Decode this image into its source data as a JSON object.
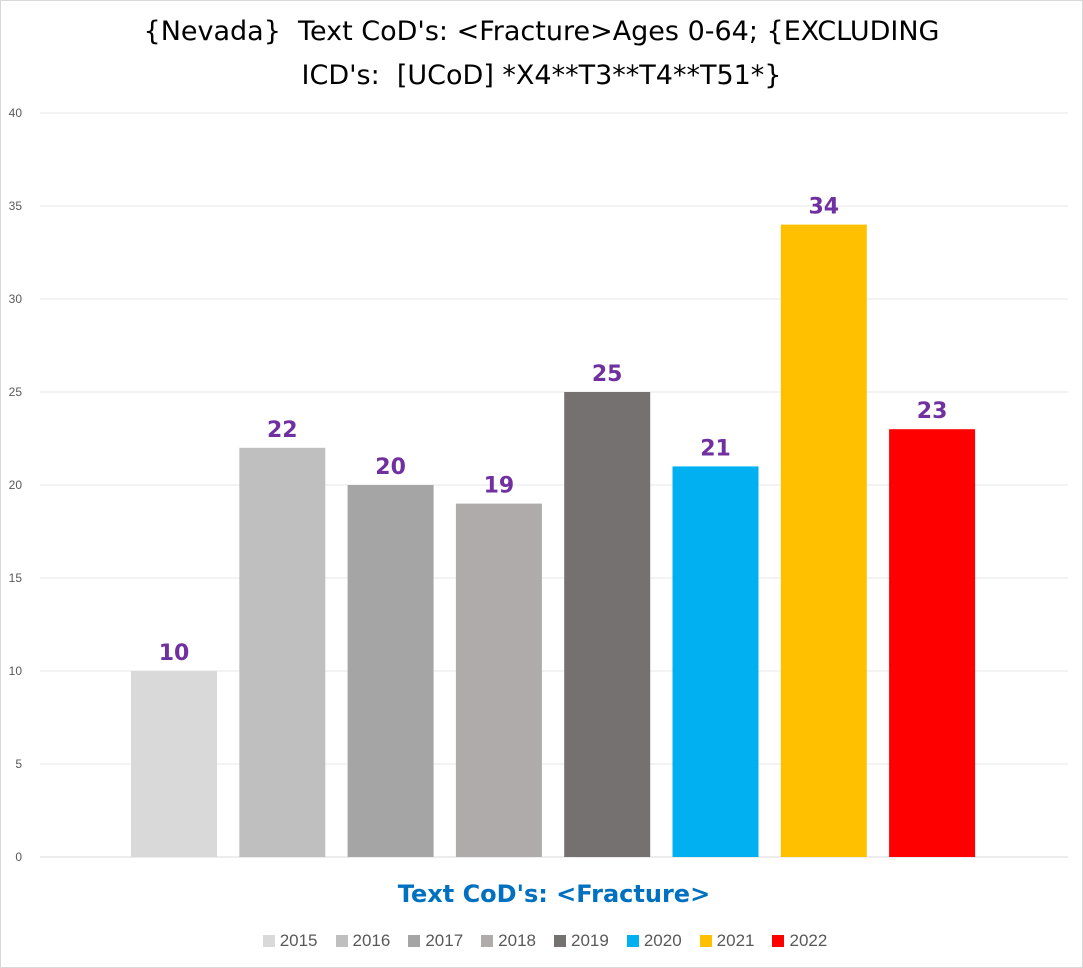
{
  "chart_data": {
    "type": "bar",
    "title_lines": [
      "{Nevada}  Text CoD's: <Fracture>Ages 0-64; {EXCLUDING",
      "ICD's:  [UCoD] *X4**T3**T4**T51*}"
    ],
    "xlabel": "Text CoD's: <Fracture>",
    "ylabel": "",
    "ylim": [
      0,
      40
    ],
    "yticks": [
      0,
      5,
      10,
      15,
      20,
      25,
      30,
      35,
      40
    ],
    "grid": true,
    "legend_position": "bottom",
    "series": [
      {
        "name": "2015",
        "value": 10,
        "color": "#d9d9d9"
      },
      {
        "name": "2016",
        "value": 22,
        "color": "#bfbfbf"
      },
      {
        "name": "2017",
        "value": 20,
        "color": "#a5a5a5"
      },
      {
        "name": "2018",
        "value": 19,
        "color": "#afabab"
      },
      {
        "name": "2019",
        "value": 25,
        "color": "#767171"
      },
      {
        "name": "2020",
        "value": 21,
        "color": "#00b0f0"
      },
      {
        "name": "2021",
        "value": 34,
        "color": "#ffc000"
      },
      {
        "name": "2022",
        "value": 23,
        "color": "#ff0000"
      }
    ],
    "data_label_color": "#7030a0",
    "xlabel_color": "#0070c0"
  }
}
